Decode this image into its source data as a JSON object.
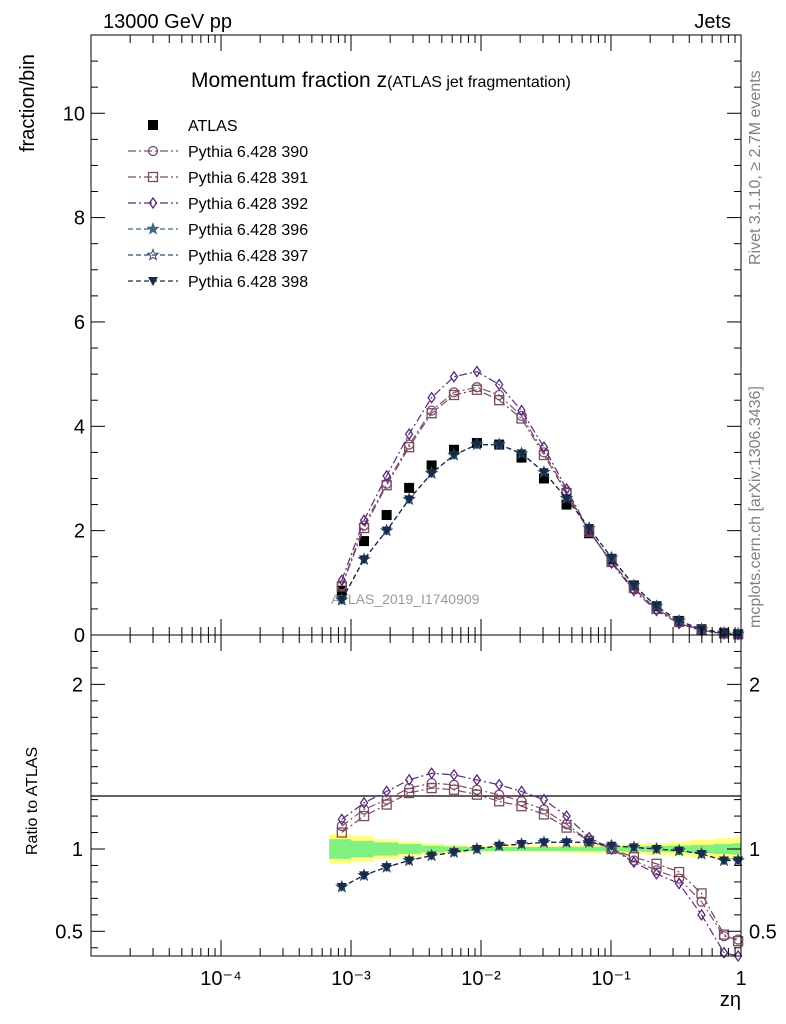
{
  "header": {
    "energy_label": "13000 GeV pp",
    "process_label": "Jets",
    "side_rivet": "Rivet 3.1.10, ≥ 2.7M events",
    "side_mcplots": "mcplots.cern.ch [arXiv:1306.3436]",
    "watermark": "ATLAS_2019_I1740909"
  },
  "chart_data": [
    {
      "type": "scatter",
      "panel": "main",
      "title": "Momentum fraction z",
      "subtitle": "(ATLAS jet fragmentation)",
      "ylabel": "fraction/bin",
      "xlabel": "",
      "xscale": "log",
      "xlim": [
        1e-05,
        1
      ],
      "ylim": [
        0,
        11.5
      ],
      "yticks": [
        0,
        2,
        4,
        6,
        8,
        10
      ],
      "grid": false,
      "legend": "top-left",
      "x": [
        0.00085,
        0.00126,
        0.00188,
        0.0028,
        0.00417,
        0.0062,
        0.0093,
        0.0138,
        0.0205,
        0.0305,
        0.0455,
        0.0678,
        0.101,
        0.15,
        0.224,
        0.334,
        0.497,
        0.74,
        0.95
      ],
      "series": [
        {
          "name": "ATLAS",
          "marker": "square",
          "color": "#000000",
          "values": [
            0.85,
            1.8,
            2.3,
            2.82,
            3.25,
            3.55,
            3.68,
            3.65,
            3.4,
            3.0,
            2.5,
            1.95,
            1.45,
            0.95,
            0.55,
            0.27,
            0.11,
            0.04,
            0.02
          ]
        },
        {
          "name": "Pythia 6.428 390",
          "marker": "circle",
          "color": "#7b5070",
          "dash": "8,3,2,3",
          "values": [
            0.95,
            2.1,
            2.9,
            3.65,
            4.3,
            4.65,
            4.75,
            4.6,
            4.2,
            3.5,
            2.75,
            2.0,
            1.4,
            0.88,
            0.5,
            0.24,
            0.09,
            0.03,
            0.015
          ]
        },
        {
          "name": "Pythia 6.428 391",
          "marker": "square-open",
          "color": "#7a4a5a",
          "dash": "8,3,2,3",
          "values": [
            0.93,
            2.05,
            2.87,
            3.6,
            4.25,
            4.6,
            4.7,
            4.5,
            4.15,
            3.45,
            2.72,
            1.98,
            1.4,
            0.9,
            0.5,
            0.25,
            0.09,
            0.03,
            0.015
          ]
        },
        {
          "name": "Pythia 6.428 392",
          "marker": "diamond-open",
          "color": "#5a2a7a",
          "dash": "8,3,2,3",
          "values": [
            1.05,
            2.2,
            3.05,
            3.85,
            4.55,
            4.95,
            5.05,
            4.8,
            4.3,
            3.6,
            2.8,
            2.0,
            1.38,
            0.85,
            0.47,
            0.22,
            0.08,
            0.025,
            0.01
          ]
        },
        {
          "name": "Pythia 6.428 396",
          "marker": "star-filled",
          "color": "#3a6a7a",
          "dash": "5,3",
          "values": [
            0.67,
            1.45,
            2.0,
            2.6,
            3.1,
            3.45,
            3.65,
            3.65,
            3.48,
            3.12,
            2.62,
            2.05,
            1.48,
            0.95,
            0.55,
            0.27,
            0.11,
            0.04,
            0.02
          ]
        },
        {
          "name": "Pythia 6.428 397",
          "marker": "star-open",
          "color": "#2d4a6a",
          "dash": "5,3",
          "values": [
            0.67,
            1.45,
            2.0,
            2.6,
            3.1,
            3.45,
            3.65,
            3.65,
            3.48,
            3.12,
            2.62,
            2.05,
            1.48,
            0.95,
            0.55,
            0.27,
            0.11,
            0.04,
            0.02
          ]
        },
        {
          "name": "Pythia 6.428 398",
          "marker": "triangle-down",
          "color": "#1a2a4a",
          "dash": "5,3",
          "values": [
            0.67,
            1.45,
            2.0,
            2.6,
            3.1,
            3.45,
            3.65,
            3.65,
            3.48,
            3.12,
            2.62,
            2.05,
            1.48,
            0.95,
            0.55,
            0.27,
            0.11,
            0.04,
            0.02
          ]
        }
      ]
    },
    {
      "type": "scatter",
      "panel": "ratio",
      "ylabel": "Ratio to ATLAS",
      "xlabel": "zη",
      "xscale": "log",
      "xlim": [
        1e-05,
        1
      ],
      "ylim": [
        0.35,
        2.3
      ],
      "yticks": [
        0.5,
        1,
        2
      ],
      "xticks": [
        "10⁻⁴",
        "10⁻³",
        "10⁻²",
        "10⁻¹",
        "1"
      ],
      "grid": false,
      "band_edges": [
        0.00068,
        0.001,
        0.0015,
        0.0023,
        0.0035,
        0.0052,
        0.0078,
        0.0116,
        0.0172,
        0.0256,
        0.038,
        0.057,
        0.084,
        0.125,
        0.186,
        0.277,
        0.412,
        0.614,
        0.86,
        1.0
      ],
      "band_inner": [
        0.06,
        0.05,
        0.04,
        0.03,
        0.02,
        0.015,
        0.012,
        0.012,
        0.012,
        0.012,
        0.013,
        0.014,
        0.015,
        0.016,
        0.018,
        0.02,
        0.025,
        0.03,
        0.035
      ],
      "band_outer": [
        0.09,
        0.08,
        0.06,
        0.045,
        0.035,
        0.025,
        0.02,
        0.02,
        0.02,
        0.02,
        0.022,
        0.024,
        0.026,
        0.03,
        0.035,
        0.045,
        0.055,
        0.065,
        0.07
      ],
      "x": [
        0.00085,
        0.00126,
        0.00188,
        0.0028,
        0.00417,
        0.0062,
        0.0093,
        0.0138,
        0.0205,
        0.0305,
        0.0455,
        0.0678,
        0.101,
        0.15,
        0.224,
        0.334,
        0.497,
        0.74,
        0.95
      ],
      "series": [
        {
          "name": "Pythia 6.428 390",
          "values": [
            1.14,
            1.24,
            1.3,
            1.37,
            1.4,
            1.39,
            1.36,
            1.33,
            1.29,
            1.24,
            1.15,
            1.05,
            1.0,
            0.93,
            0.87,
            0.82,
            0.68,
            0.47,
            0.45
          ]
        },
        {
          "name": "Pythia 6.428 391",
          "values": [
            1.1,
            1.2,
            1.27,
            1.34,
            1.37,
            1.36,
            1.33,
            1.29,
            1.26,
            1.21,
            1.13,
            1.05,
            1.0,
            0.95,
            0.91,
            0.86,
            0.73,
            0.48,
            0.44
          ]
        },
        {
          "name": "Pythia 6.428 392",
          "values": [
            1.18,
            1.28,
            1.35,
            1.42,
            1.46,
            1.45,
            1.42,
            1.39,
            1.35,
            1.3,
            1.2,
            1.07,
            1.0,
            0.92,
            0.85,
            0.79,
            0.6,
            0.37,
            0.35
          ]
        },
        {
          "name": "Pythia 6.428 396",
          "values": [
            0.77,
            0.84,
            0.89,
            0.93,
            0.96,
            0.98,
            1.0,
            1.02,
            1.03,
            1.04,
            1.04,
            1.04,
            1.02,
            1.01,
            1.0,
            0.99,
            0.97,
            0.93,
            0.93
          ]
        },
        {
          "name": "Pythia 6.428 397",
          "values": [
            0.77,
            0.84,
            0.89,
            0.93,
            0.96,
            0.98,
            1.0,
            1.02,
            1.03,
            1.04,
            1.04,
            1.04,
            1.02,
            1.01,
            1.0,
            0.99,
            0.97,
            0.93,
            0.93
          ]
        },
        {
          "name": "Pythia 6.428 398",
          "values": [
            0.77,
            0.84,
            0.89,
            0.93,
            0.96,
            0.98,
            1.0,
            1.02,
            1.03,
            1.04,
            1.04,
            1.04,
            1.02,
            1.01,
            1.0,
            0.99,
            0.97,
            0.93,
            0.93
          ]
        }
      ]
    }
  ]
}
